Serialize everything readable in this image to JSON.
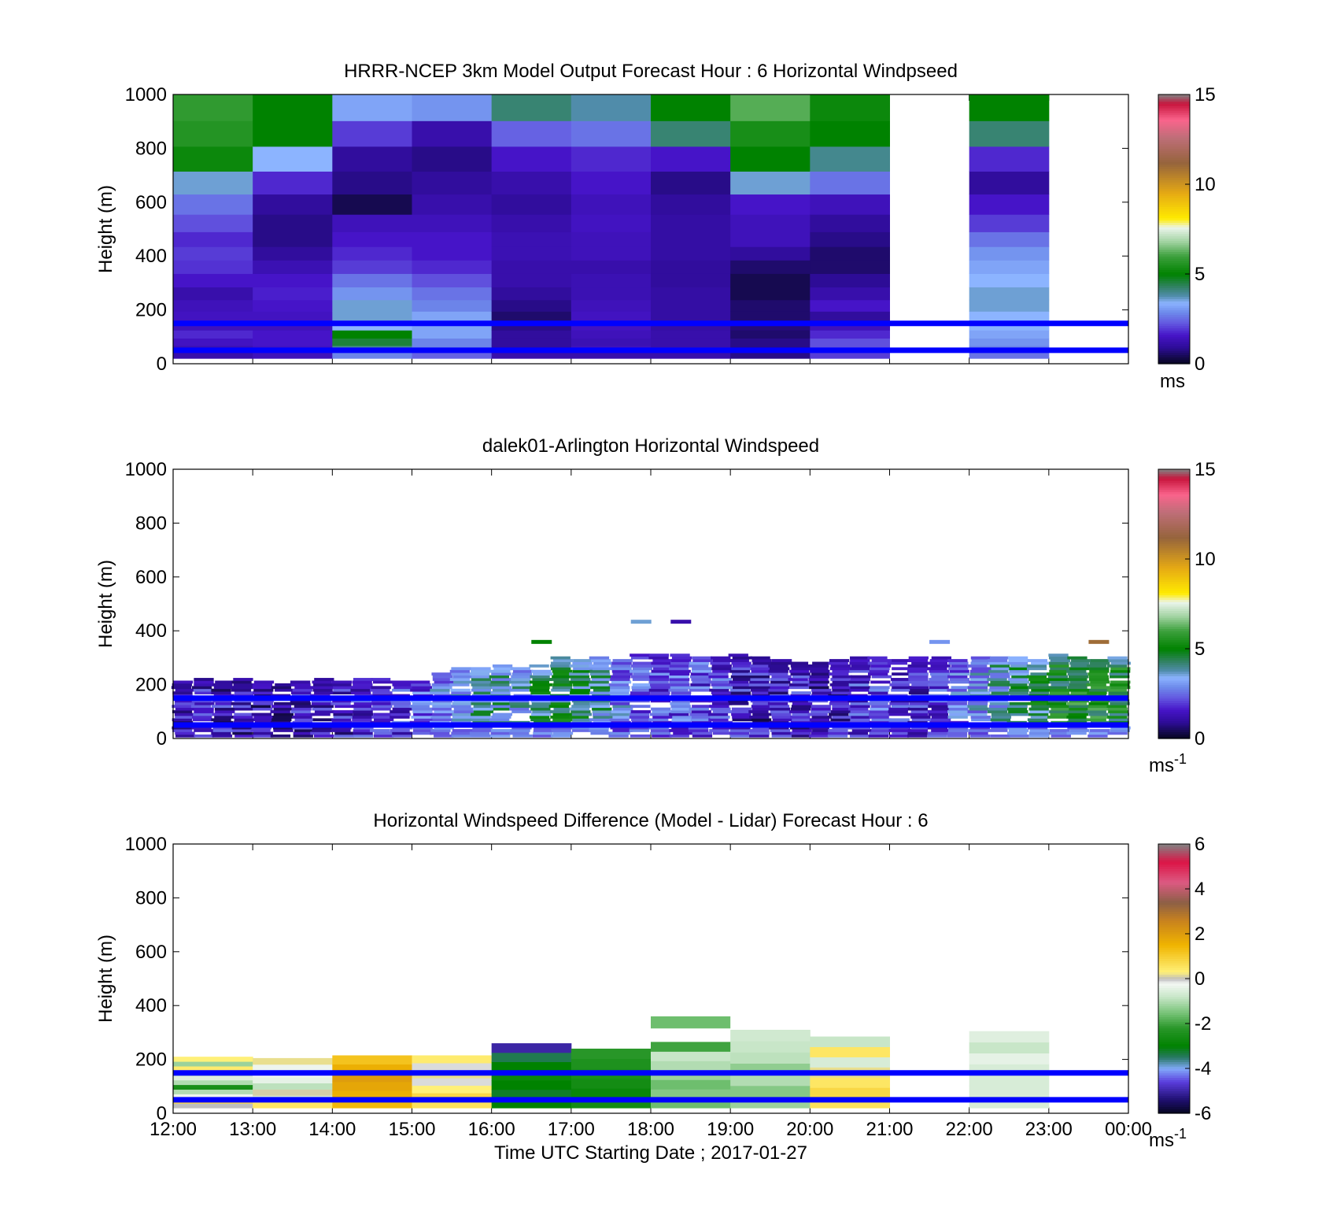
{
  "figure": {
    "xticks": [
      "12:00",
      "13:00",
      "14:00",
      "15:00",
      "16:00",
      "17:00",
      "18:00",
      "19:00",
      "20:00",
      "21:00",
      "22:00",
      "23:00",
      "00:00"
    ],
    "xlabel": "Time UTC  Starting Date ; 2017-01-27",
    "ylabel": "Height (m)",
    "yticks": [
      "0",
      "200",
      "400",
      "600",
      "800",
      "1000"
    ],
    "ref_lines_m": [
      50,
      150
    ],
    "ref_line_color": "#0000ff"
  },
  "chart_data": [
    {
      "type": "heatmap",
      "title": "HRRR-NCEP 3km Model Output   Forecast Hour : 6 Horizontal Windpseed",
      "xlabel": "",
      "ylabel": "Height (m)",
      "ylim": [
        0,
        1000
      ],
      "xlim": [
        "12:00",
        "00:00"
      ],
      "x": [
        "12:00",
        "13:00",
        "14:00",
        "15:00",
        "16:00",
        "17:00",
        "18:00",
        "19:00",
        "20:00",
        "21:00",
        "22:00",
        "23:00"
      ],
      "y_levels_m": [
        30,
        55,
        80,
        110,
        140,
        175,
        215,
        260,
        310,
        360,
        410,
        460,
        520,
        590,
        670,
        760,
        855,
        950
      ],
      "values": [
        [
          1.2,
          1.3,
          1.5,
          1.8,
          1.4,
          1.5,
          1.4,
          1.2,
          1.6,
          1.9,
          2.0,
          1.8,
          2.2,
          2.6,
          3.6,
          5.2,
          5.6,
          5.8
        ],
        [
          1.4,
          1.5,
          1.6,
          1.6,
          1.4,
          1.5,
          1.6,
          1.7,
          1.6,
          1.3,
          1.0,
          0.8,
          0.8,
          1.0,
          1.8,
          3.4,
          5.0,
          5.0
        ],
        [
          2.8,
          4.0,
          4.6,
          5.0,
          3.4,
          3.6,
          3.6,
          3.0,
          2.6,
          2.0,
          1.8,
          1.6,
          1.4,
          0.4,
          0.8,
          1.0,
          2.0,
          3.2
        ],
        [
          2.4,
          2.8,
          2.8,
          3.2,
          3.2,
          3.2,
          2.8,
          2.6,
          2.2,
          1.8,
          1.6,
          1.6,
          1.4,
          1.2,
          1.0,
          0.8,
          1.2,
          3.0
        ],
        [
          1.2,
          1.0,
          1.0,
          1.0,
          0.8,
          0.6,
          0.8,
          1.0,
          1.2,
          1.2,
          1.3,
          1.3,
          1.2,
          1.0,
          1.2,
          1.6,
          2.4,
          4.2
        ],
        [
          1.2,
          1.4,
          1.3,
          1.4,
          1.5,
          1.5,
          1.4,
          1.3,
          1.3,
          1.2,
          1.4,
          1.4,
          1.5,
          1.4,
          1.6,
          1.8,
          2.6,
          3.8
        ],
        [
          1.2,
          1.2,
          1.2,
          1.2,
          1.1,
          1.1,
          1.1,
          1.1,
          1.0,
          1.0,
          1.1,
          1.1,
          1.1,
          1.0,
          0.8,
          1.6,
          4.2,
          5.0
        ],
        [
          0.8,
          0.8,
          0.8,
          0.6,
          0.7,
          0.6,
          0.6,
          0.4,
          0.4,
          0.6,
          1.0,
          1.4,
          1.4,
          1.6,
          3.6,
          5.0,
          5.4,
          6.2
        ],
        [
          2.0,
          2.2,
          2.2,
          1.8,
          1.4,
          1.0,
          1.6,
          1.2,
          0.9,
          0.6,
          0.6,
          0.8,
          1.0,
          1.4,
          2.6,
          4.0,
          5.0,
          5.2
        ],
        [
          null,
          null,
          null,
          null,
          null,
          null,
          null,
          null,
          null,
          null,
          null,
          null,
          null,
          null,
          null,
          null,
          null,
          null
        ],
        [
          2.6,
          2.8,
          3.0,
          3.2,
          3.4,
          3.4,
          3.6,
          3.6,
          3.4,
          3.2,
          3.0,
          2.6,
          2.0,
          1.6,
          1.0,
          1.8,
          4.2,
          5.0
        ],
        [
          null,
          null,
          null,
          null,
          null,
          null,
          null,
          null,
          null,
          null,
          null,
          null,
          null,
          null,
          null,
          null,
          null,
          null
        ]
      ],
      "clim": [
        0,
        15
      ],
      "colorbar_ticks": [
        "0",
        "5",
        "10",
        "15"
      ],
      "colorbar_label": "ms",
      "grid": false
    },
    {
      "type": "heatmap",
      "title": "dalek01-Arlington  Horizontal Windspeed",
      "xlabel": "",
      "ylabel": "Height (m)",
      "ylim": [
        0,
        1000
      ],
      "xlim": [
        "12:00",
        "00:00"
      ],
      "x": [
        "12:00",
        "12:15",
        "12:30",
        "12:45",
        "13:00",
        "13:15",
        "13:30",
        "13:45",
        "14:00",
        "14:15",
        "14:30",
        "14:45",
        "15:00",
        "15:15",
        "15:30",
        "15:45",
        "16:00",
        "16:15",
        "16:30",
        "16:45",
        "17:00",
        "17:15",
        "17:30",
        "17:45",
        "18:00",
        "18:15",
        "18:30",
        "18:45",
        "19:00",
        "19:15",
        "19:30",
        "19:45",
        "20:00",
        "20:15",
        "20:30",
        "20:45",
        "21:00",
        "21:15",
        "21:30",
        "21:45",
        "22:00",
        "22:15",
        "22:30",
        "22:45",
        "23:00",
        "23:15",
        "23:30",
        "23:45"
      ],
      "top_m": [
        215,
        220,
        215,
        220,
        210,
        205,
        215,
        220,
        215,
        220,
        225,
        215,
        215,
        240,
        260,
        265,
        270,
        265,
        275,
        300,
        290,
        300,
        300,
        310,
        310,
        310,
        315,
        300,
        310,
        305,
        290,
        285,
        285,
        290,
        300,
        300,
        295,
        300,
        300,
        290,
        300,
        305,
        300,
        295,
        310,
        305,
        300,
        300
      ],
      "mean_ms": [
        1.4,
        1.4,
        1.5,
        1.4,
        1.4,
        1.3,
        1.5,
        1.6,
        1.6,
        1.8,
        2.0,
        2.0,
        2.4,
        2.8,
        3.4,
        3.8,
        3.8,
        3.6,
        4.2,
        4.6,
        4.2,
        3.8,
        2.8,
        2.4,
        2.0,
        2.4,
        2.2,
        2.0,
        1.6,
        1.4,
        1.4,
        1.6,
        1.4,
        1.6,
        2.0,
        2.2,
        1.8,
        1.6,
        2.0,
        2.6,
        3.0,
        3.6,
        4.0,
        4.4,
        5.0,
        5.2,
        5.2,
        5.0
      ],
      "isolated_points": [
        {
          "x": "17:45",
          "height_m": 435,
          "value": 3.6
        },
        {
          "x": "18:15",
          "height_m": 435,
          "value": 1.2
        },
        {
          "x": "16:30",
          "height_m": 360,
          "value": 5.0
        },
        {
          "x": "21:30",
          "height_m": 360,
          "value": 3.0
        },
        {
          "x": "23:30",
          "height_m": 360,
          "value": 11.0
        }
      ],
      "clim": [
        0,
        15
      ],
      "colorbar_ticks": [
        "0",
        "5",
        "10",
        "15"
      ],
      "colorbar_label": "ms-1",
      "grid": false
    },
    {
      "type": "heatmap",
      "title": "Horizontal Windspeed Difference (Model - Lidar) Forecast Hour : 6",
      "xlabel": "Time UTC  Starting Date ; 2017-01-27",
      "ylabel": "Height (m)",
      "ylim": [
        0,
        1000
      ],
      "xlim": [
        "12:00",
        "00:00"
      ],
      "x": [
        "12:00",
        "13:00",
        "14:00",
        "15:00",
        "16:00",
        "17:00",
        "18:00",
        "19:00",
        "20:00",
        "21:00",
        "22:00",
        "23:00"
      ],
      "top_m": [
        210,
        205,
        215,
        215,
        260,
        240,
        265,
        310,
        285,
        0,
        305,
        0
      ],
      "layers": [
        [
          [
            0,
            0.8
          ],
          [
            -0.3,
            -1.0,
            -2.5,
            -1.0,
            -0.5
          ],
          [
            -1.6,
            0.4,
            -1.2,
            0.3
          ]
        ],
        [
          [
            0.5,
            -0.6,
            0.1,
            -0.9,
            -0.4,
            -0.2,
            -0.3,
            0.2
          ]
        ],
        [
          [
            1.4,
            1.6,
            1.8,
            2.0,
            1.6,
            1.2
          ]
        ],
        [
          [
            0.6,
            0.8,
            0.3,
            -0.1,
            0.2,
            -0.1,
            0.4
          ]
        ],
        [
          [
            -3.0,
            -3.2,
            -3.0,
            -2.8,
            -3.0,
            -3.4,
            -5.0
          ]
        ],
        [
          [
            -2.6,
            -2.8,
            -2.6,
            -2.5,
            -2.4,
            -2.2
          ]
        ],
        [
          [
            -1.6,
            -1.4,
            -1.6,
            -1.2,
            -1.0,
            -0.8,
            -2.0
          ]
        ],
        [
          [
            -1.2,
            -1.4,
            -1.0,
            -1.3,
            -0.9,
            -0.8,
            -0.7
          ]
        ],
        [
          [
            0.6,
            0.8,
            0.5,
            0.2,
            -0.6,
            0.5,
            -0.8
          ]
        ],
        [],
        [
          [
            -0.6,
            -0.6,
            -0.6,
            -0.6,
            -0.4,
            -0.8,
            -0.5
          ]
        ],
        []
      ],
      "isolated_points": [
        {
          "x": "18:00",
          "bottom_m": 315,
          "top_m": 360,
          "value": -1.6
        }
      ],
      "clim": [
        -6,
        6
      ],
      "colorbar_ticks": [
        "-6",
        "-4",
        "-2",
        "0",
        "2",
        "4",
        "6"
      ],
      "colorbar_label": "ms-1",
      "grid": false
    }
  ]
}
